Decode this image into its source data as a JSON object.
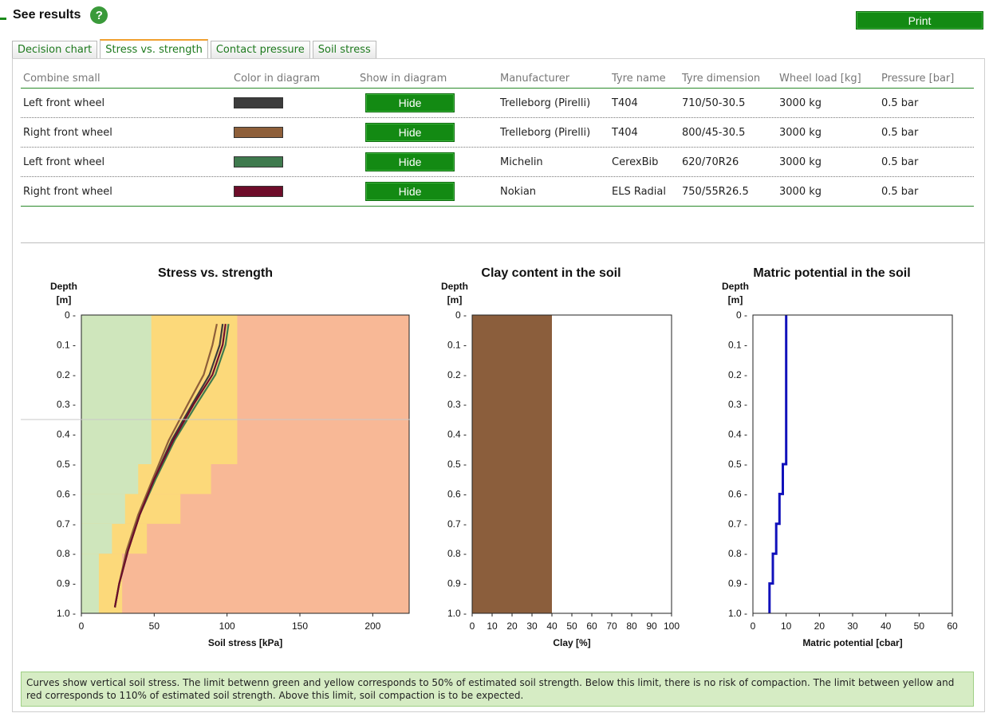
{
  "header": {
    "title": "See results",
    "help_icon": "?",
    "print_label": "Print"
  },
  "tabs": [
    {
      "label": "Decision chart",
      "active": false
    },
    {
      "label": "Stress vs. strength",
      "active": true
    },
    {
      "label": "Contact pressure",
      "active": false
    },
    {
      "label": "Soil stress",
      "active": false
    }
  ],
  "table": {
    "columns": [
      "Combine small",
      "Color in diagram",
      "Show in diagram",
      "Manufacturer",
      "Tyre name",
      "Tyre dimension",
      "Wheel load [kg]",
      "Pressure [bar]"
    ],
    "rows": [
      {
        "wheel": "Left front wheel",
        "color": "#3c3c3c",
        "button": "Hide",
        "manufacturer": "Trelleborg (Pirelli)",
        "tyre": "T404",
        "dimension": "710/50-30.5",
        "load": "3000 kg",
        "pressure": "0.5 bar"
      },
      {
        "wheel": "Right front wheel",
        "color": "#8e5f3a",
        "button": "Hide",
        "manufacturer": "Trelleborg (Pirelli)",
        "tyre": "T404",
        "dimension": "800/45-30.5",
        "load": "3000 kg",
        "pressure": "0.5 bar"
      },
      {
        "wheel": "Left front wheel",
        "color": "#3f7a4e",
        "button": "Hide",
        "manufacturer": "Michelin",
        "tyre": "CerexBib",
        "dimension": "620/70R26",
        "load": "3000 kg",
        "pressure": "0.5 bar"
      },
      {
        "wheel": "Right front wheel",
        "color": "#6e0d2a",
        "button": "Hide",
        "manufacturer": "Nokian",
        "tyre": "ELS Radial",
        "dimension": "750/55R26.5",
        "load": "3000 kg",
        "pressure": "0.5 bar"
      }
    ]
  },
  "chart_data": [
    {
      "type": "area",
      "title": "Stress vs. strength",
      "ylabel": "Depth [m]",
      "xlabel": "Soil stress [kPa]",
      "xlim": [
        0,
        225
      ],
      "ylim": [
        0,
        1.0
      ],
      "xticks": [
        "0",
        "50",
        "100",
        "150",
        "200"
      ],
      "xtick_values": [
        0,
        50,
        100,
        150,
        200
      ],
      "yticks": [
        "0",
        "0.1",
        "0.2",
        "0.3",
        "0.4",
        "0.5",
        "0.6",
        "0.7",
        "0.8",
        "0.9",
        "1.0"
      ],
      "zone_colors": {
        "green": "#cfe6bc",
        "yellow": "#fcd97a",
        "red": "#f8b896"
      },
      "green_limit": [
        {
          "depth_from": 0.0,
          "depth_to": 0.5,
          "stress": 48
        },
        {
          "depth_from": 0.5,
          "depth_to": 0.6,
          "stress": 39
        },
        {
          "depth_from": 0.6,
          "depth_to": 0.7,
          "stress": 30
        },
        {
          "depth_from": 0.7,
          "depth_to": 0.8,
          "stress": 21
        },
        {
          "depth_from": 0.8,
          "depth_to": 1.0,
          "stress": 12
        }
      ],
      "yellow_limit": [
        {
          "depth_from": 0.0,
          "depth_to": 0.5,
          "stress": 107
        },
        {
          "depth_from": 0.5,
          "depth_to": 0.6,
          "stress": 89
        },
        {
          "depth_from": 0.6,
          "depth_to": 0.7,
          "stress": 68
        },
        {
          "depth_from": 0.7,
          "depth_to": 0.8,
          "stress": 45
        },
        {
          "depth_from": 0.8,
          "depth_to": 1.0,
          "stress": 28
        }
      ],
      "series": [
        {
          "color": "#3c3c3c",
          "points": [
            [
              97,
              0.03
            ],
            [
              95,
              0.1
            ],
            [
              88,
              0.2
            ],
            [
              76,
              0.3
            ],
            [
              62,
              0.42
            ],
            [
              50,
              0.55
            ],
            [
              40,
              0.67
            ],
            [
              32,
              0.79
            ],
            [
              26,
              0.9
            ],
            [
              23,
              0.98
            ]
          ]
        },
        {
          "color": "#8e5f3a",
          "points": [
            [
              93,
              0.03
            ],
            [
              90,
              0.1
            ],
            [
              84,
              0.2
            ],
            [
              73,
              0.3
            ],
            [
              60,
              0.42
            ],
            [
              49,
              0.55
            ],
            [
              39,
              0.67
            ],
            [
              31,
              0.79
            ],
            [
              26,
              0.9
            ],
            [
              23,
              0.98
            ]
          ]
        },
        {
          "color": "#3f7a4e",
          "points": [
            [
              101,
              0.03
            ],
            [
              99,
              0.1
            ],
            [
              92,
              0.2
            ],
            [
              79,
              0.3
            ],
            [
              64,
              0.42
            ],
            [
              51,
              0.55
            ],
            [
              40,
              0.67
            ],
            [
              32,
              0.79
            ],
            [
              26,
              0.9
            ],
            [
              23,
              0.98
            ]
          ]
        },
        {
          "color": "#6e0d2a",
          "points": [
            [
              99,
              0.03
            ],
            [
              97,
              0.1
            ],
            [
              90,
              0.2
            ],
            [
              77,
              0.3
            ],
            [
              63,
              0.42
            ],
            [
              50,
              0.55
            ],
            [
              40,
              0.67
            ],
            [
              32,
              0.79
            ],
            [
              26,
              0.9
            ],
            [
              23,
              0.98
            ]
          ]
        }
      ]
    },
    {
      "type": "bar",
      "title": "Clay content in the soil",
      "ylabel": "Depth [m]",
      "xlabel": "Clay [%]",
      "xlim": [
        0,
        100
      ],
      "ylim": [
        0,
        1.0
      ],
      "xticks": [
        "0",
        "10",
        "20",
        "30",
        "40",
        "50",
        "60",
        "70",
        "80",
        "90",
        "100"
      ],
      "xtick_values": [
        0,
        10,
        20,
        30,
        40,
        50,
        60,
        70,
        80,
        90,
        100
      ],
      "yticks": [
        "0",
        "0.1",
        "0.2",
        "0.3",
        "0.4",
        "0.5",
        "0.6",
        "0.7",
        "0.8",
        "0.9",
        "1.0"
      ],
      "bar_color": "#8b5e3c",
      "values": [
        {
          "depth_from": 0.0,
          "depth_to": 1.0,
          "clay": 40
        }
      ]
    },
    {
      "type": "line",
      "title": "Matric potential in the soil",
      "ylabel": "Depth [m]",
      "xlabel": "Matric potential [cbar]",
      "xlim": [
        0,
        60
      ],
      "ylim": [
        0,
        1.0
      ],
      "xticks": [
        "0",
        "10",
        "20",
        "30",
        "40",
        "50",
        "60"
      ],
      "xtick_values": [
        0,
        10,
        20,
        30,
        40,
        50,
        60
      ],
      "yticks": [
        "0",
        "0.1",
        "0.2",
        "0.3",
        "0.4",
        "0.5",
        "0.6",
        "0.7",
        "0.8",
        "0.9",
        "1.0"
      ],
      "line_color": "#1111bb",
      "steps": [
        {
          "depth_from": 0.0,
          "depth_to": 0.5,
          "value": 10
        },
        {
          "depth_from": 0.5,
          "depth_to": 0.6,
          "value": 9
        },
        {
          "depth_from": 0.6,
          "depth_to": 0.7,
          "value": 8
        },
        {
          "depth_from": 0.7,
          "depth_to": 0.8,
          "value": 7
        },
        {
          "depth_from": 0.8,
          "depth_to": 0.9,
          "value": 6
        },
        {
          "depth_from": 0.9,
          "depth_to": 1.0,
          "value": 5
        }
      ]
    }
  ],
  "note": "Curves show vertical soil stress. The limit betwenn green and yellow corresponds to 50% of estimated soil strength. Below this limit, there is no risk of compaction. The limit between yellow and red corresponds to 110% of estimated soil strength. Above this limit, soil compaction is to be expected."
}
